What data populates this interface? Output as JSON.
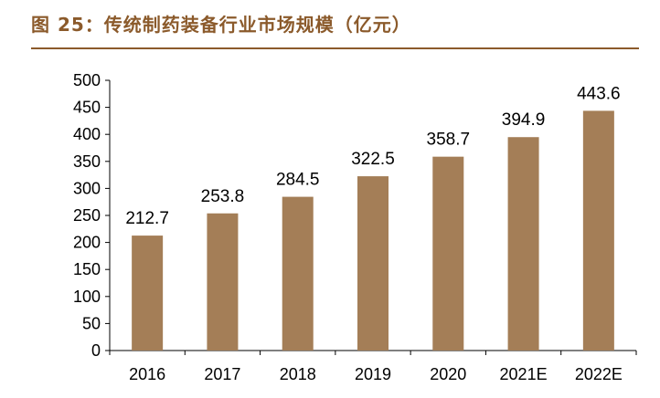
{
  "header": {
    "title": "图 25：传统制药装备行业市场规模（亿元）"
  },
  "colors": {
    "bar": "#a47e57",
    "title": "#8b5a2b",
    "axis": "#000000"
  },
  "chart_data": {
    "type": "bar",
    "title": "图 25：传统制药装备行业市场规模（亿元）",
    "categories": [
      "2016",
      "2017",
      "2018",
      "2019",
      "2020",
      "2021E",
      "2022E"
    ],
    "values": [
      212.7,
      253.8,
      284.5,
      322.5,
      358.7,
      394.9,
      443.6
    ],
    "value_labels": [
      "212.7",
      "253.8",
      "284.5",
      "322.5",
      "358.7",
      "394.9",
      "443.6"
    ],
    "ylim": [
      0,
      500
    ],
    "yticks": [
      0,
      50,
      100,
      150,
      200,
      250,
      300,
      350,
      400,
      450,
      500
    ],
    "xlabel": "",
    "ylabel": "",
    "grid": false,
    "legend": "none"
  }
}
